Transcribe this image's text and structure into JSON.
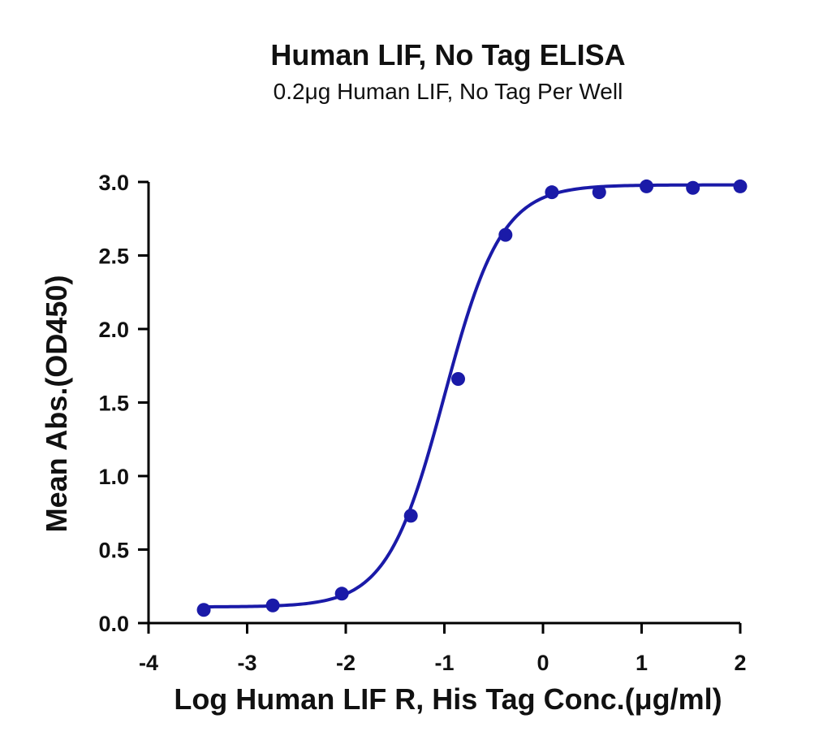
{
  "chart_data": {
    "type": "scatter",
    "title": "Human LIF, No Tag ELISA",
    "subtitle": "0.2μg Human LIF, No Tag Per Well",
    "xlabel": "Log Human LIF R, His Tag Conc.(μg/ml)",
    "ylabel": "Mean Abs.(OD450)",
    "xlim": [
      -4,
      2
    ],
    "ylim": [
      0,
      3
    ],
    "xticks": [
      "-4",
      "-3",
      "-2",
      "-1",
      "0",
      "1",
      "2"
    ],
    "yticks": [
      "0.0",
      "0.5",
      "1.0",
      "1.5",
      "2.0",
      "2.5",
      "3.0"
    ],
    "grid": false,
    "color": "#1a1aa8",
    "series": [
      {
        "x": [
          -3.44,
          -2.74,
          -2.04,
          -1.34,
          -0.86,
          -0.38,
          0.09,
          0.57,
          1.05,
          1.52,
          2.0
        ],
        "values": [
          0.09,
          0.12,
          0.2,
          0.73,
          1.66,
          2.64,
          2.93,
          2.93,
          2.97,
          2.96,
          2.97
        ]
      }
    ],
    "fit": {
      "type": "4PL",
      "bottom": 0.11,
      "top": 2.98,
      "log_ec50": -1.0,
      "hill_slope": 1.5
    }
  }
}
